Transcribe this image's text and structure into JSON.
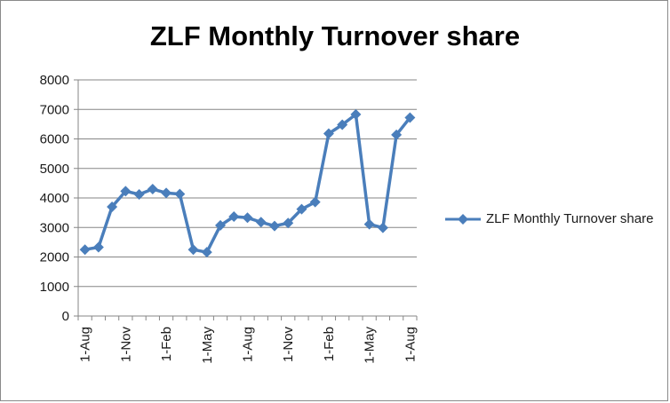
{
  "chart_data": {
    "type": "line",
    "title": "ZLF Monthly Turnover share",
    "xlabel": "",
    "ylabel": "",
    "ylim": [
      0,
      8000
    ],
    "yticks": [
      0,
      1000,
      2000,
      3000,
      4000,
      5000,
      6000,
      7000,
      8000
    ],
    "x_tick_labels": [
      "1-Aug",
      "1-Nov",
      "1-Feb",
      "1-May",
      "1-Aug",
      "1-Nov",
      "1-Feb",
      "1-May",
      "1-Aug"
    ],
    "grid": "horizontal",
    "legend": "right",
    "colors": {
      "series": "#4a7ebb",
      "grid": "#868686",
      "axis": "#868686"
    },
    "series": [
      {
        "name": "ZLF Monthly Turnover share",
        "marker": "diamond",
        "values": [
          2250,
          2330,
          3700,
          4230,
          4120,
          4300,
          4170,
          4130,
          2250,
          2160,
          3070,
          3370,
          3330,
          3180,
          3050,
          3150,
          3620,
          3860,
          6180,
          6480,
          6830,
          3110,
          2990,
          6140,
          6720
        ]
      }
    ]
  }
}
